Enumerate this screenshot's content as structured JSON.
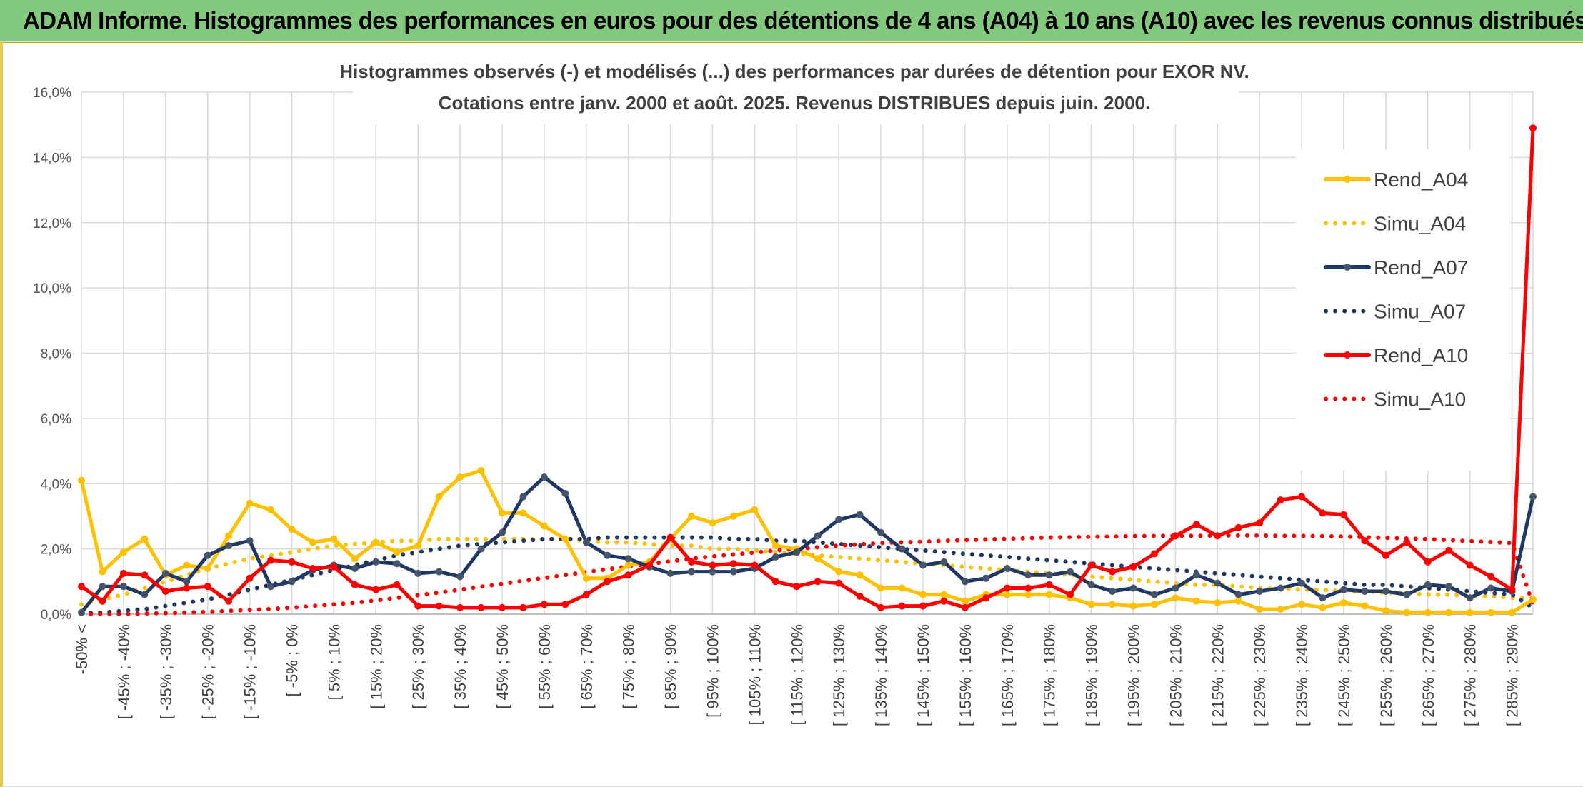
{
  "banner_title": "ADAM Informe. Histogrammes des performances en euros pour des détentions de 4 ans (A04) à 10 ans (A10) avec les revenus connus distribués",
  "colors": {
    "banner": "#82c97d",
    "A04": "#ffc000",
    "A07": "#1f3864",
    "A10": "#ff0000",
    "grid": "#d9d9d9"
  },
  "chart_data": {
    "type": "line",
    "title": "Histogrammes observés (-) et modélisés (...) des performances par durées de détention pour EXOR NV.",
    "subtitle": "Cotations entre janv. 2000 et août. 2025. Revenus DISTRIBUES depuis juin. 2000.",
    "xlabel": "",
    "ylabel": "",
    "ylim": [
      0,
      16
    ],
    "y_ticks": [
      "0,0%",
      "2,0%",
      "4,0%",
      "6,0%",
      "8,0%",
      "10,0%",
      "12,0%",
      "14,0%",
      "16,0%"
    ],
    "grid": true,
    "legend_position": "right",
    "x_tick_labels": [
      "-50% <",
      "[ -45% ; -40%",
      "[ -35% ; -30%",
      "[ -25% ; -20%",
      "[ -15% ; -10%",
      "[ -5% ; 0%",
      "[ 5% ; 10%",
      "[ 15% ; 20%",
      "[ 25% ; 30%",
      "[ 35% ; 40%",
      "[ 45% ; 50%",
      "[ 55% ; 60%",
      "[ 65% ; 70%",
      "[ 75% ; 80%",
      "[ 85% ; 90%",
      "[ 95% ; 100%",
      "[ 105% ; 110%",
      "[ 115% ; 120%",
      "[ 125% ; 130%",
      "[ 135% ; 140%",
      "[ 145% ; 150%",
      "[ 155% ; 160%",
      "[ 165% ; 170%",
      "[ 175% ; 180%",
      "[ 185% ; 190%",
      "[ 195% ; 200%",
      "[ 205% ; 210%",
      "[ 215% ; 220%",
      "[ 225% ; 230%",
      "[ 235% ; 240%",
      "[ 245% ; 250%",
      "[ 255% ; 260%",
      "[ 265% ; 270%",
      "[ 275% ; 280%",
      "[ 285% ; 290%"
    ],
    "series": [
      {
        "name": "Rend_A04",
        "style": "solid",
        "color": "#ffc000",
        "values": [
          4.1,
          1.3,
          1.9,
          2.3,
          1.2,
          1.5,
          1.4,
          2.4,
          3.4,
          3.2,
          2.6,
          2.2,
          2.3,
          1.7,
          2.2,
          1.9,
          2.1,
          3.6,
          4.2,
          4.4,
          3.1,
          3.1,
          2.7,
          2.3,
          1.1,
          1.1,
          1.5,
          1.6,
          2.3,
          3.0,
          2.8,
          3.0,
          3.2,
          2.1,
          2.0,
          1.7,
          1.3,
          1.2,
          0.8,
          0.8,
          0.6,
          0.6,
          0.4,
          0.6,
          0.6,
          0.6,
          0.6,
          0.5,
          0.3,
          0.3,
          0.25,
          0.3,
          0.5,
          0.4,
          0.35,
          0.4,
          0.15,
          0.15,
          0.3,
          0.2,
          0.35,
          0.25,
          0.1,
          0.05,
          0.05,
          0.05,
          0.05,
          0.05,
          0.05,
          0.45
        ]
      },
      {
        "name": "Simu_A04",
        "style": "dotted",
        "color": "#ffc000",
        "values": [
          0.3,
          0.45,
          0.6,
          0.8,
          1.0,
          1.2,
          1.4,
          1.55,
          1.7,
          1.8,
          1.9,
          2.0,
          2.1,
          2.15,
          2.2,
          2.25,
          2.25,
          2.3,
          2.3,
          2.3,
          2.3,
          2.3,
          2.3,
          2.3,
          2.25,
          2.2,
          2.2,
          2.15,
          2.1,
          2.1,
          2.0,
          2.0,
          1.95,
          1.9,
          1.85,
          1.8,
          1.75,
          1.7,
          1.65,
          1.6,
          1.55,
          1.5,
          1.45,
          1.4,
          1.35,
          1.3,
          1.25,
          1.2,
          1.15,
          1.1,
          1.05,
          1.0,
          0.95,
          0.9,
          0.9,
          0.85,
          0.8,
          0.8,
          0.75,
          0.75,
          0.7,
          0.7,
          0.65,
          0.65,
          0.6,
          0.6,
          0.55,
          0.55,
          0.5,
          0.5
        ]
      },
      {
        "name": "Rend_A07",
        "style": "solid",
        "color": "#1f3864",
        "values": [
          0.05,
          0.85,
          0.85,
          0.6,
          1.25,
          1.0,
          1.8,
          2.1,
          2.25,
          0.85,
          1.0,
          1.35,
          1.5,
          1.4,
          1.6,
          1.55,
          1.25,
          1.3,
          1.15,
          2.0,
          2.5,
          3.6,
          4.2,
          3.7,
          2.2,
          1.8,
          1.7,
          1.45,
          1.25,
          1.3,
          1.3,
          1.3,
          1.4,
          1.75,
          1.9,
          2.4,
          2.9,
          3.05,
          2.5,
          2.0,
          1.5,
          1.6,
          1.0,
          1.1,
          1.4,
          1.2,
          1.2,
          1.3,
          0.9,
          0.7,
          0.8,
          0.6,
          0.8,
          1.2,
          0.95,
          0.6,
          0.7,
          0.8,
          0.95,
          0.5,
          0.75,
          0.7,
          0.7,
          0.6,
          0.9,
          0.85,
          0.5,
          0.8,
          0.7,
          3.6
        ]
      },
      {
        "name": "Simu_A07",
        "style": "dotted",
        "color": "#1f3864",
        "values": [
          0.02,
          0.05,
          0.1,
          0.15,
          0.25,
          0.35,
          0.45,
          0.6,
          0.75,
          0.9,
          1.05,
          1.2,
          1.35,
          1.5,
          1.65,
          1.8,
          1.9,
          2.0,
          2.1,
          2.15,
          2.2,
          2.25,
          2.3,
          2.3,
          2.3,
          2.35,
          2.35,
          2.35,
          2.35,
          2.35,
          2.35,
          2.3,
          2.3,
          2.25,
          2.25,
          2.2,
          2.15,
          2.1,
          2.05,
          2.0,
          1.95,
          1.9,
          1.85,
          1.8,
          1.75,
          1.7,
          1.65,
          1.6,
          1.55,
          1.5,
          1.45,
          1.4,
          1.35,
          1.3,
          1.25,
          1.2,
          1.15,
          1.1,
          1.05,
          1.0,
          0.95,
          0.9,
          0.9,
          0.85,
          0.8,
          0.75,
          0.7,
          0.65,
          0.6,
          0.2
        ]
      },
      {
        "name": "Rend_A10",
        "style": "solid",
        "color": "#ff0000",
        "values": [
          0.85,
          0.4,
          1.25,
          1.2,
          0.7,
          0.8,
          0.85,
          0.4,
          1.1,
          1.65,
          1.6,
          1.4,
          1.45,
          0.9,
          0.75,
          0.9,
          0.25,
          0.25,
          0.2,
          0.2,
          0.2,
          0.2,
          0.3,
          0.3,
          0.6,
          1.0,
          1.2,
          1.5,
          2.35,
          1.6,
          1.5,
          1.55,
          1.5,
          1.0,
          0.85,
          1.0,
          0.95,
          0.55,
          0.2,
          0.25,
          0.25,
          0.4,
          0.2,
          0.5,
          0.8,
          0.8,
          0.9,
          0.6,
          1.5,
          1.3,
          1.45,
          1.85,
          2.4,
          2.75,
          2.4,
          2.65,
          2.8,
          3.5,
          3.6,
          3.1,
          3.05,
          2.25,
          1.8,
          2.2,
          1.6,
          1.95,
          1.5,
          1.15,
          0.75,
          14.9
        ]
      },
      {
        "name": "Simu_A10",
        "style": "dotted",
        "color": "#ff0000",
        "values": [
          0.0,
          0.0,
          0.0,
          0.02,
          0.03,
          0.05,
          0.07,
          0.1,
          0.13,
          0.16,
          0.2,
          0.25,
          0.3,
          0.35,
          0.42,
          0.5,
          0.58,
          0.66,
          0.75,
          0.84,
          0.93,
          1.02,
          1.11,
          1.2,
          1.29,
          1.38,
          1.46,
          1.54,
          1.62,
          1.7,
          1.77,
          1.83,
          1.89,
          1.95,
          2.0,
          2.05,
          2.1,
          2.14,
          2.18,
          2.2,
          2.22,
          2.25,
          2.27,
          2.29,
          2.31,
          2.33,
          2.35,
          2.36,
          2.37,
          2.38,
          2.39,
          2.4,
          2.4,
          2.4,
          2.41,
          2.41,
          2.41,
          2.4,
          2.4,
          2.39,
          2.38,
          2.36,
          2.34,
          2.32,
          2.3,
          2.27,
          2.24,
          2.21,
          2.18,
          0.3
        ]
      }
    ]
  }
}
